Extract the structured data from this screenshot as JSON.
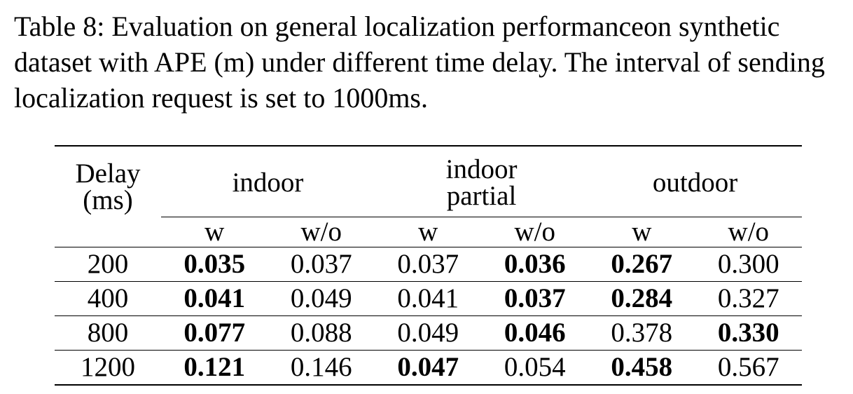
{
  "caption": {
    "lines": [
      "Table 8: Evaluation on general localization performanceon synthetic",
      "dataset with APE (m) under different time delay. The interval of sending",
      "localization request is set to 1000ms."
    ]
  },
  "table": {
    "delay_header": [
      "Delay",
      "(ms)"
    ],
    "groups": [
      {
        "lines": [
          "indoor"
        ]
      },
      {
        "lines": [
          "indoor",
          "partial"
        ]
      },
      {
        "lines": [
          "outdoor"
        ]
      }
    ],
    "subheaders": [
      "w",
      "w/o",
      "w",
      "w/o",
      "w",
      "w/o"
    ],
    "rows": [
      {
        "delay": "200",
        "cells": [
          {
            "v": "0.035",
            "bold": true
          },
          {
            "v": "0.037",
            "bold": false
          },
          {
            "v": "0.037",
            "bold": false
          },
          {
            "v": "0.036",
            "bold": true
          },
          {
            "v": "0.267",
            "bold": true
          },
          {
            "v": "0.300",
            "bold": false
          }
        ]
      },
      {
        "delay": "400",
        "cells": [
          {
            "v": "0.041",
            "bold": true
          },
          {
            "v": "0.049",
            "bold": false
          },
          {
            "v": "0.041",
            "bold": false
          },
          {
            "v": "0.037",
            "bold": true
          },
          {
            "v": "0.284",
            "bold": true
          },
          {
            "v": "0.327",
            "bold": false
          }
        ]
      },
      {
        "delay": "800",
        "cells": [
          {
            "v": "0.077",
            "bold": true
          },
          {
            "v": "0.088",
            "bold": false
          },
          {
            "v": "0.049",
            "bold": false
          },
          {
            "v": "0.046",
            "bold": true
          },
          {
            "v": "0.378",
            "bold": false
          },
          {
            "v": "0.330",
            "bold": true
          }
        ]
      },
      {
        "delay": "1200",
        "cells": [
          {
            "v": "0.121",
            "bold": true
          },
          {
            "v": "0.146",
            "bold": false
          },
          {
            "v": "0.047",
            "bold": true
          },
          {
            "v": "0.054",
            "bold": false
          },
          {
            "v": "0.458",
            "bold": true
          },
          {
            "v": "0.567",
            "bold": false
          }
        ]
      }
    ]
  }
}
